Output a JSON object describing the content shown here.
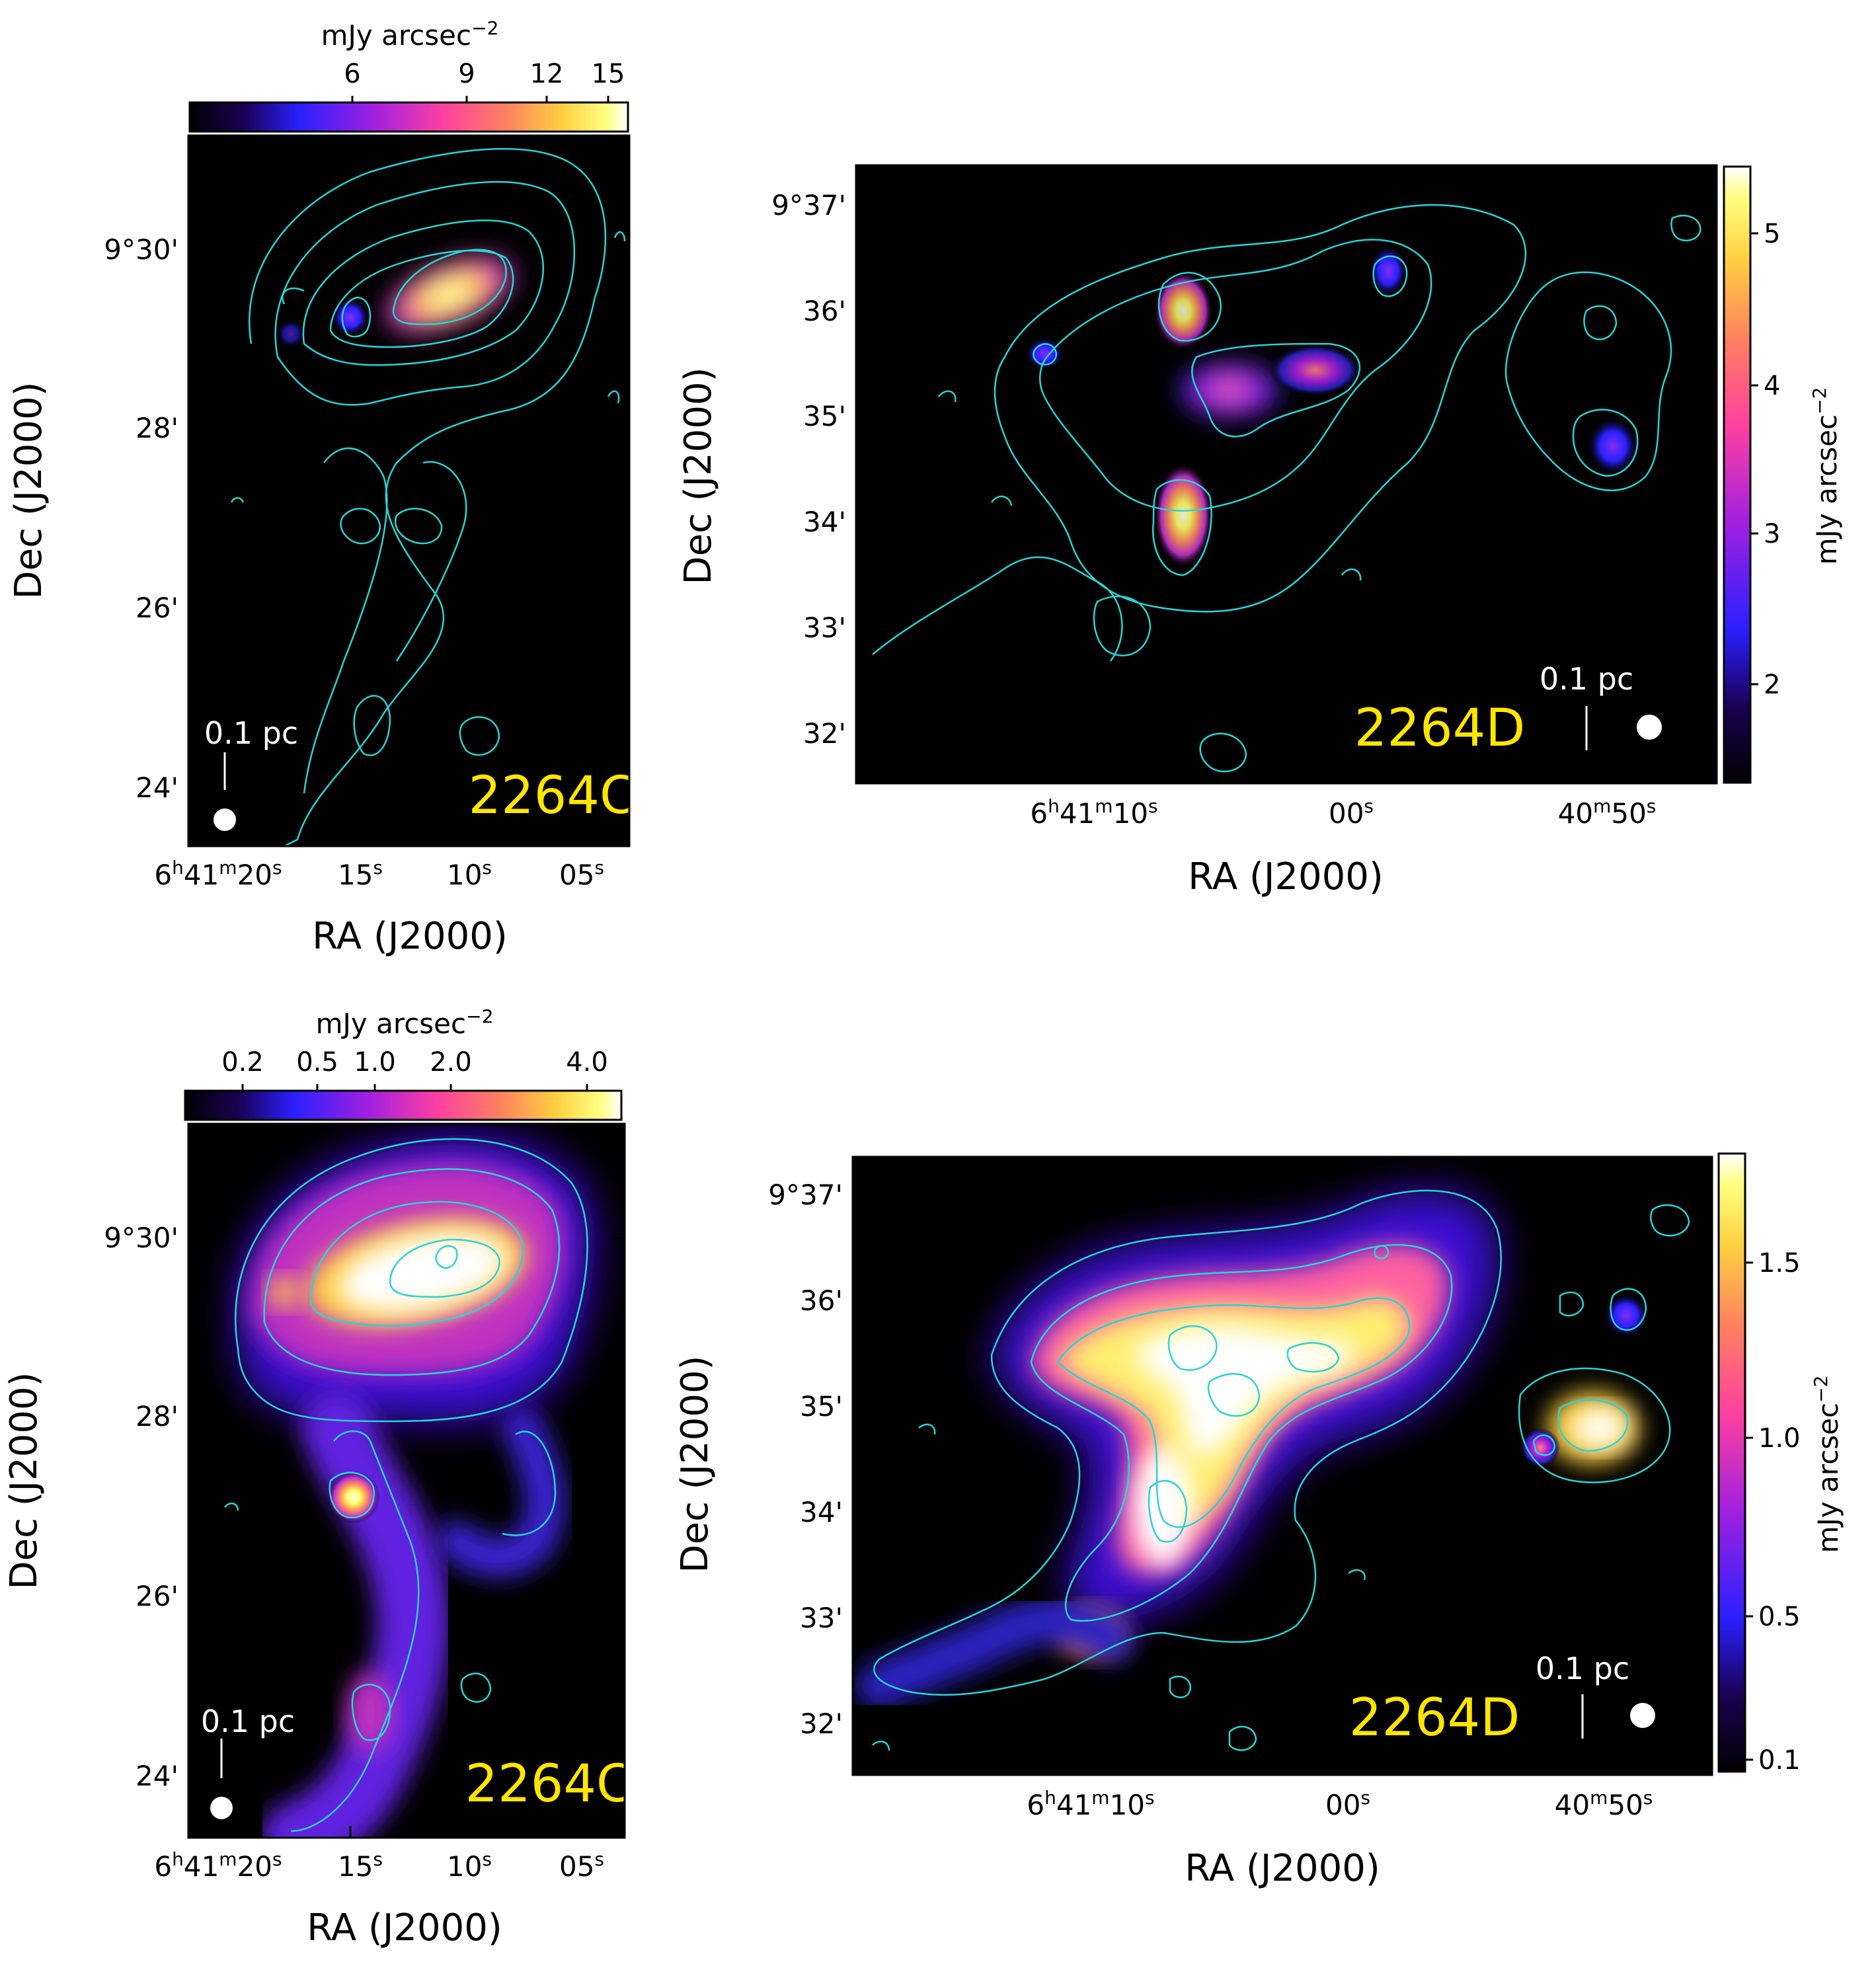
{
  "figure": {
    "panels": [
      {
        "id": "top_left",
        "field_label": "2264C",
        "scalebar_label": "0.1 pc",
        "xlabel": "RA (J2000)",
        "ylabel": "Dec (J2000)",
        "yticks": [
          "9°30'",
          "28'",
          "26'",
          "24'"
        ],
        "xticks": [
          {
            "h": "6",
            "m": "41",
            "s": "20"
          },
          {
            "s": "15"
          },
          {
            "s": "10"
          },
          {
            "s": "05"
          }
        ],
        "colorbar": {
          "orientation": "horizontal",
          "label": "mJy arcsec",
          "label_sup": "−2",
          "ticks": [
            "6",
            "9",
            "12",
            "15"
          ]
        }
      },
      {
        "id": "top_right",
        "field_label": "2264D",
        "scalebar_label": "0.1 pc",
        "xlabel": "RA (J2000)",
        "ylabel": "Dec (J2000)",
        "yticks": [
          "9°37'",
          "36'",
          "35'",
          "34'",
          "33'",
          "32'"
        ],
        "xticks": [
          {
            "h": "6",
            "m": "41",
            "s": "10"
          },
          {
            "s": "00"
          },
          {
            "m": "40",
            "s": "50"
          }
        ],
        "colorbar": {
          "orientation": "vertical",
          "label": "mJy arcsec",
          "label_sup": "−2",
          "ticks": [
            "5",
            "4",
            "3",
            "2"
          ]
        }
      },
      {
        "id": "bottom_left",
        "field_label": "2264C",
        "scalebar_label": "0.1 pc",
        "xlabel": "RA (J2000)",
        "ylabel": "Dec (J2000)",
        "yticks": [
          "9°30'",
          "28'",
          "26'",
          "24'"
        ],
        "xticks": [
          {
            "h": "6",
            "m": "41",
            "s": "20"
          },
          {
            "s": "15"
          },
          {
            "s": "10"
          },
          {
            "s": "05"
          }
        ],
        "colorbar": {
          "orientation": "horizontal",
          "label": "mJy arcsec",
          "label_sup": "−2",
          "ticks": [
            "0.2",
            "0.5",
            "1.0",
            "2.0",
            "4.0"
          ]
        }
      },
      {
        "id": "bottom_right",
        "field_label": "2264D",
        "scalebar_label": "0.1 pc",
        "xlabel": "RA (J2000)",
        "ylabel": "Dec (J2000)",
        "yticks": [
          "9°37'",
          "36'",
          "35'",
          "34'",
          "33'",
          "32'"
        ],
        "xticks": [
          {
            "h": "6",
            "m": "41",
            "s": "10"
          },
          {
            "s": "00"
          },
          {
            "m": "40",
            "s": "50"
          }
        ],
        "colorbar": {
          "orientation": "vertical",
          "label": "mJy arcsec",
          "label_sup": "−2",
          "ticks": [
            "1.5",
            "1.0",
            "0.5",
            "0.1"
          ]
        }
      }
    ],
    "colors": {
      "contour": "#2ad4d4",
      "field_label": "#ffe600",
      "scalebar": "#ffffff",
      "colormap": [
        "#000000",
        "#1a0050",
        "#2a20ff",
        "#a020e0",
        "#ff40a0",
        "#ff8060",
        "#ffd040",
        "#ffff80",
        "#ffffff"
      ]
    }
  }
}
